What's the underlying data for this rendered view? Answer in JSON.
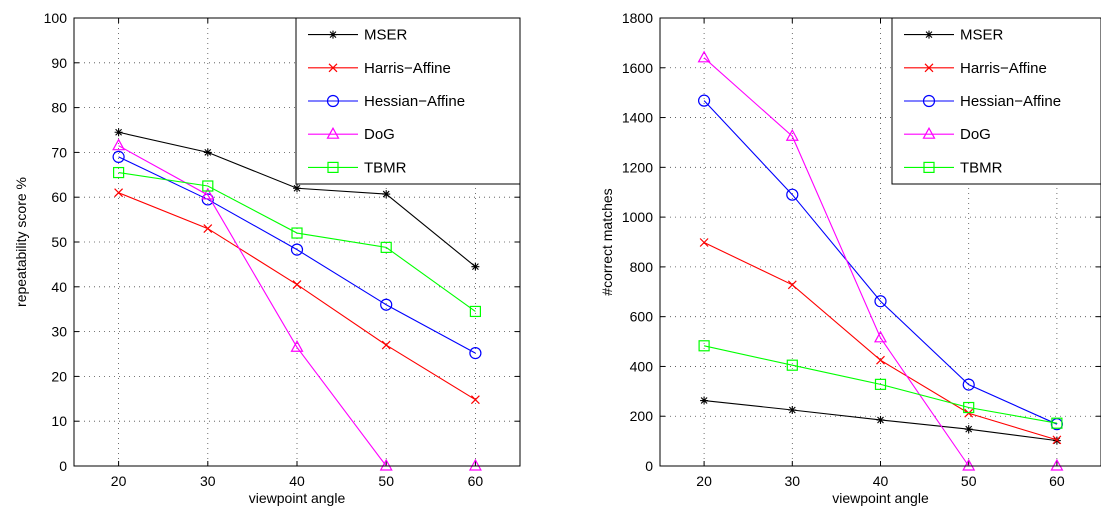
{
  "chart_data": [
    {
      "type": "line",
      "title": "",
      "xlabel": "viewpoint angle",
      "ylabel": "repeatability score %",
      "xlim": [
        15,
        65
      ],
      "ylim": [
        0,
        100
      ],
      "xticks": [
        20,
        30,
        40,
        50,
        60
      ],
      "yticks": [
        0,
        10,
        20,
        30,
        40,
        50,
        60,
        70,
        80,
        90,
        100
      ],
      "grid": true,
      "legend_position": "top-right",
      "x": [
        20,
        30,
        40,
        50,
        60
      ],
      "series": [
        {
          "name": "MSER",
          "values": [
            74.5,
            70,
            62,
            60.7,
            44.5
          ],
          "color": "#000000",
          "marker": "cross"
        },
        {
          "name": "Harris−Affine",
          "values": [
            61,
            53,
            40.5,
            27,
            14.8
          ],
          "color": "#ff0000",
          "marker": "x"
        },
        {
          "name": "Hessian−Affine",
          "values": [
            69,
            59.5,
            48.3,
            36,
            25.2
          ],
          "color": "#0000ff",
          "marker": "circle"
        },
        {
          "name": "DoG",
          "values": [
            71.5,
            60.5,
            26.5,
            0,
            0
          ],
          "color": "#ff00ff",
          "marker": "triangle"
        },
        {
          "name": "TBMR",
          "values": [
            65.5,
            62.5,
            52,
            48.8,
            34.5
          ],
          "color": "#00ff00",
          "marker": "square"
        }
      ]
    },
    {
      "type": "line",
      "title": "",
      "xlabel": "viewpoint angle",
      "ylabel": "#correct matches",
      "xlim": [
        15,
        65
      ],
      "ylim": [
        0,
        1800
      ],
      "xticks": [
        20,
        30,
        40,
        50,
        60
      ],
      "yticks": [
        0,
        200,
        400,
        600,
        800,
        1000,
        1200,
        1400,
        1600,
        1800
      ],
      "grid": true,
      "legend_position": "top-right",
      "x": [
        20,
        30,
        40,
        50,
        60
      ],
      "series": [
        {
          "name": "MSER",
          "values": [
            263,
            225,
            185,
            148,
            102
          ],
          "color": "#000000",
          "marker": "cross"
        },
        {
          "name": "Harris−Affine",
          "values": [
            898,
            728,
            425,
            212,
            105
          ],
          "color": "#ff0000",
          "marker": "x"
        },
        {
          "name": "Hessian−Affine",
          "values": [
            1468,
            1090,
            662,
            327,
            168
          ],
          "color": "#0000ff",
          "marker": "circle"
        },
        {
          "name": "DoG",
          "values": [
            1640,
            1325,
            515,
            0,
            0
          ],
          "color": "#ff00ff",
          "marker": "triangle"
        },
        {
          "name": "TBMR",
          "values": [
            483,
            405,
            328,
            235,
            172
          ],
          "color": "#00ff00",
          "marker": "square"
        }
      ]
    }
  ]
}
